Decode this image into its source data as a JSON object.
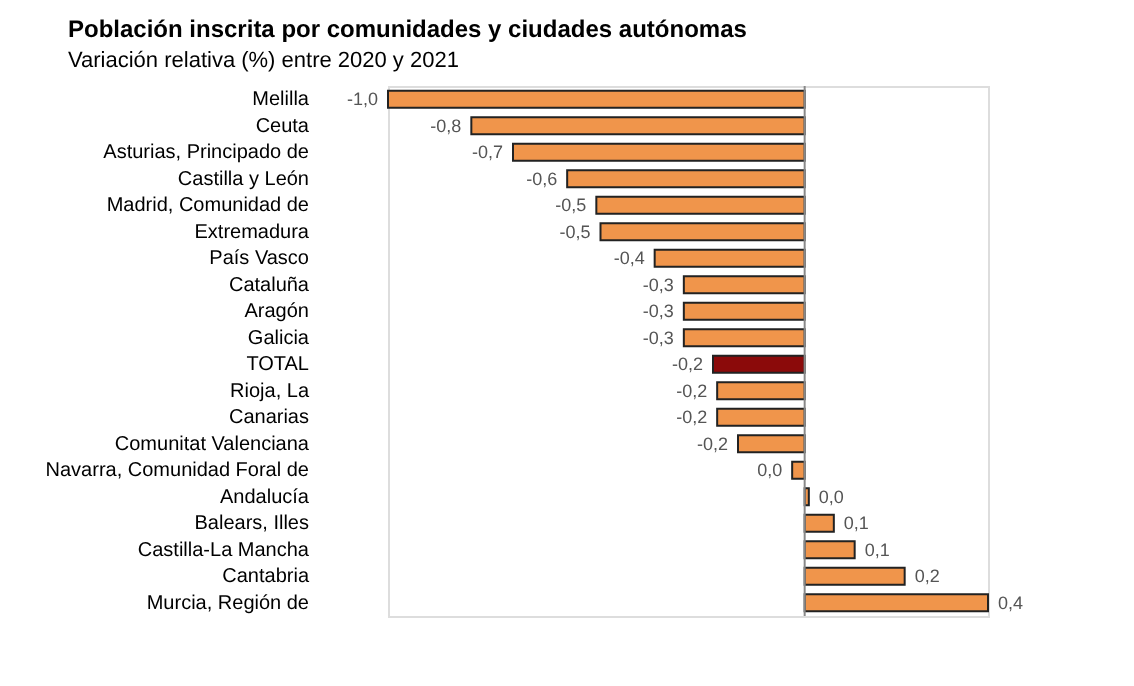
{
  "chart_data": {
    "type": "bar",
    "orientation": "horizontal",
    "title": "Población inscrita por comunidades y ciudades autónomas",
    "subtitle": "Variación relativa (%) entre 2020 y 2021",
    "categories": [
      "Melilla",
      "Ceuta",
      "Asturias, Principado de",
      "Castilla y León",
      "Madrid, Comunidad de",
      "Extremadura",
      "País Vasco",
      "Cataluña",
      "Aragón",
      "Galicia",
      "TOTAL",
      "Rioja, La",
      "Canarias",
      "Comunitat Valenciana",
      "Navarra, Comunidad Foral de",
      "Andalucía",
      "Balears, Illes",
      "Castilla-La Mancha",
      "Cantabria",
      "Murcia, Región de"
    ],
    "values": [
      -1.0,
      -0.8,
      -0.7,
      -0.57,
      -0.5,
      -0.49,
      -0.36,
      -0.29,
      -0.29,
      -0.29,
      -0.22,
      -0.21,
      -0.21,
      -0.16,
      -0.03,
      0.01,
      0.07,
      0.12,
      0.24,
      0.44
    ],
    "value_labels": [
      "-1,0",
      "-0,8",
      "-0,7",
      "-0,6",
      "-0,5",
      "-0,5",
      "-0,4",
      "-0,3",
      "-0,3",
      "-0,3",
      "-0,2",
      "-0,2",
      "-0,2",
      "-0,2",
      "0,0",
      "0,0",
      "0,1",
      "0,1",
      "0,2",
      "0,4"
    ],
    "colors": [
      "#f0954b",
      "#f0954b",
      "#f0954b",
      "#f0954b",
      "#f0954b",
      "#f0954b",
      "#f0954b",
      "#f0954b",
      "#f0954b",
      "#f0954b",
      "#8b0a0a",
      "#f0954b",
      "#f0954b",
      "#f0954b",
      "#f0954b",
      "#f0954b",
      "#f0954b",
      "#f0954b",
      "#f0954b",
      "#f0954b"
    ],
    "stacked": false
  }
}
